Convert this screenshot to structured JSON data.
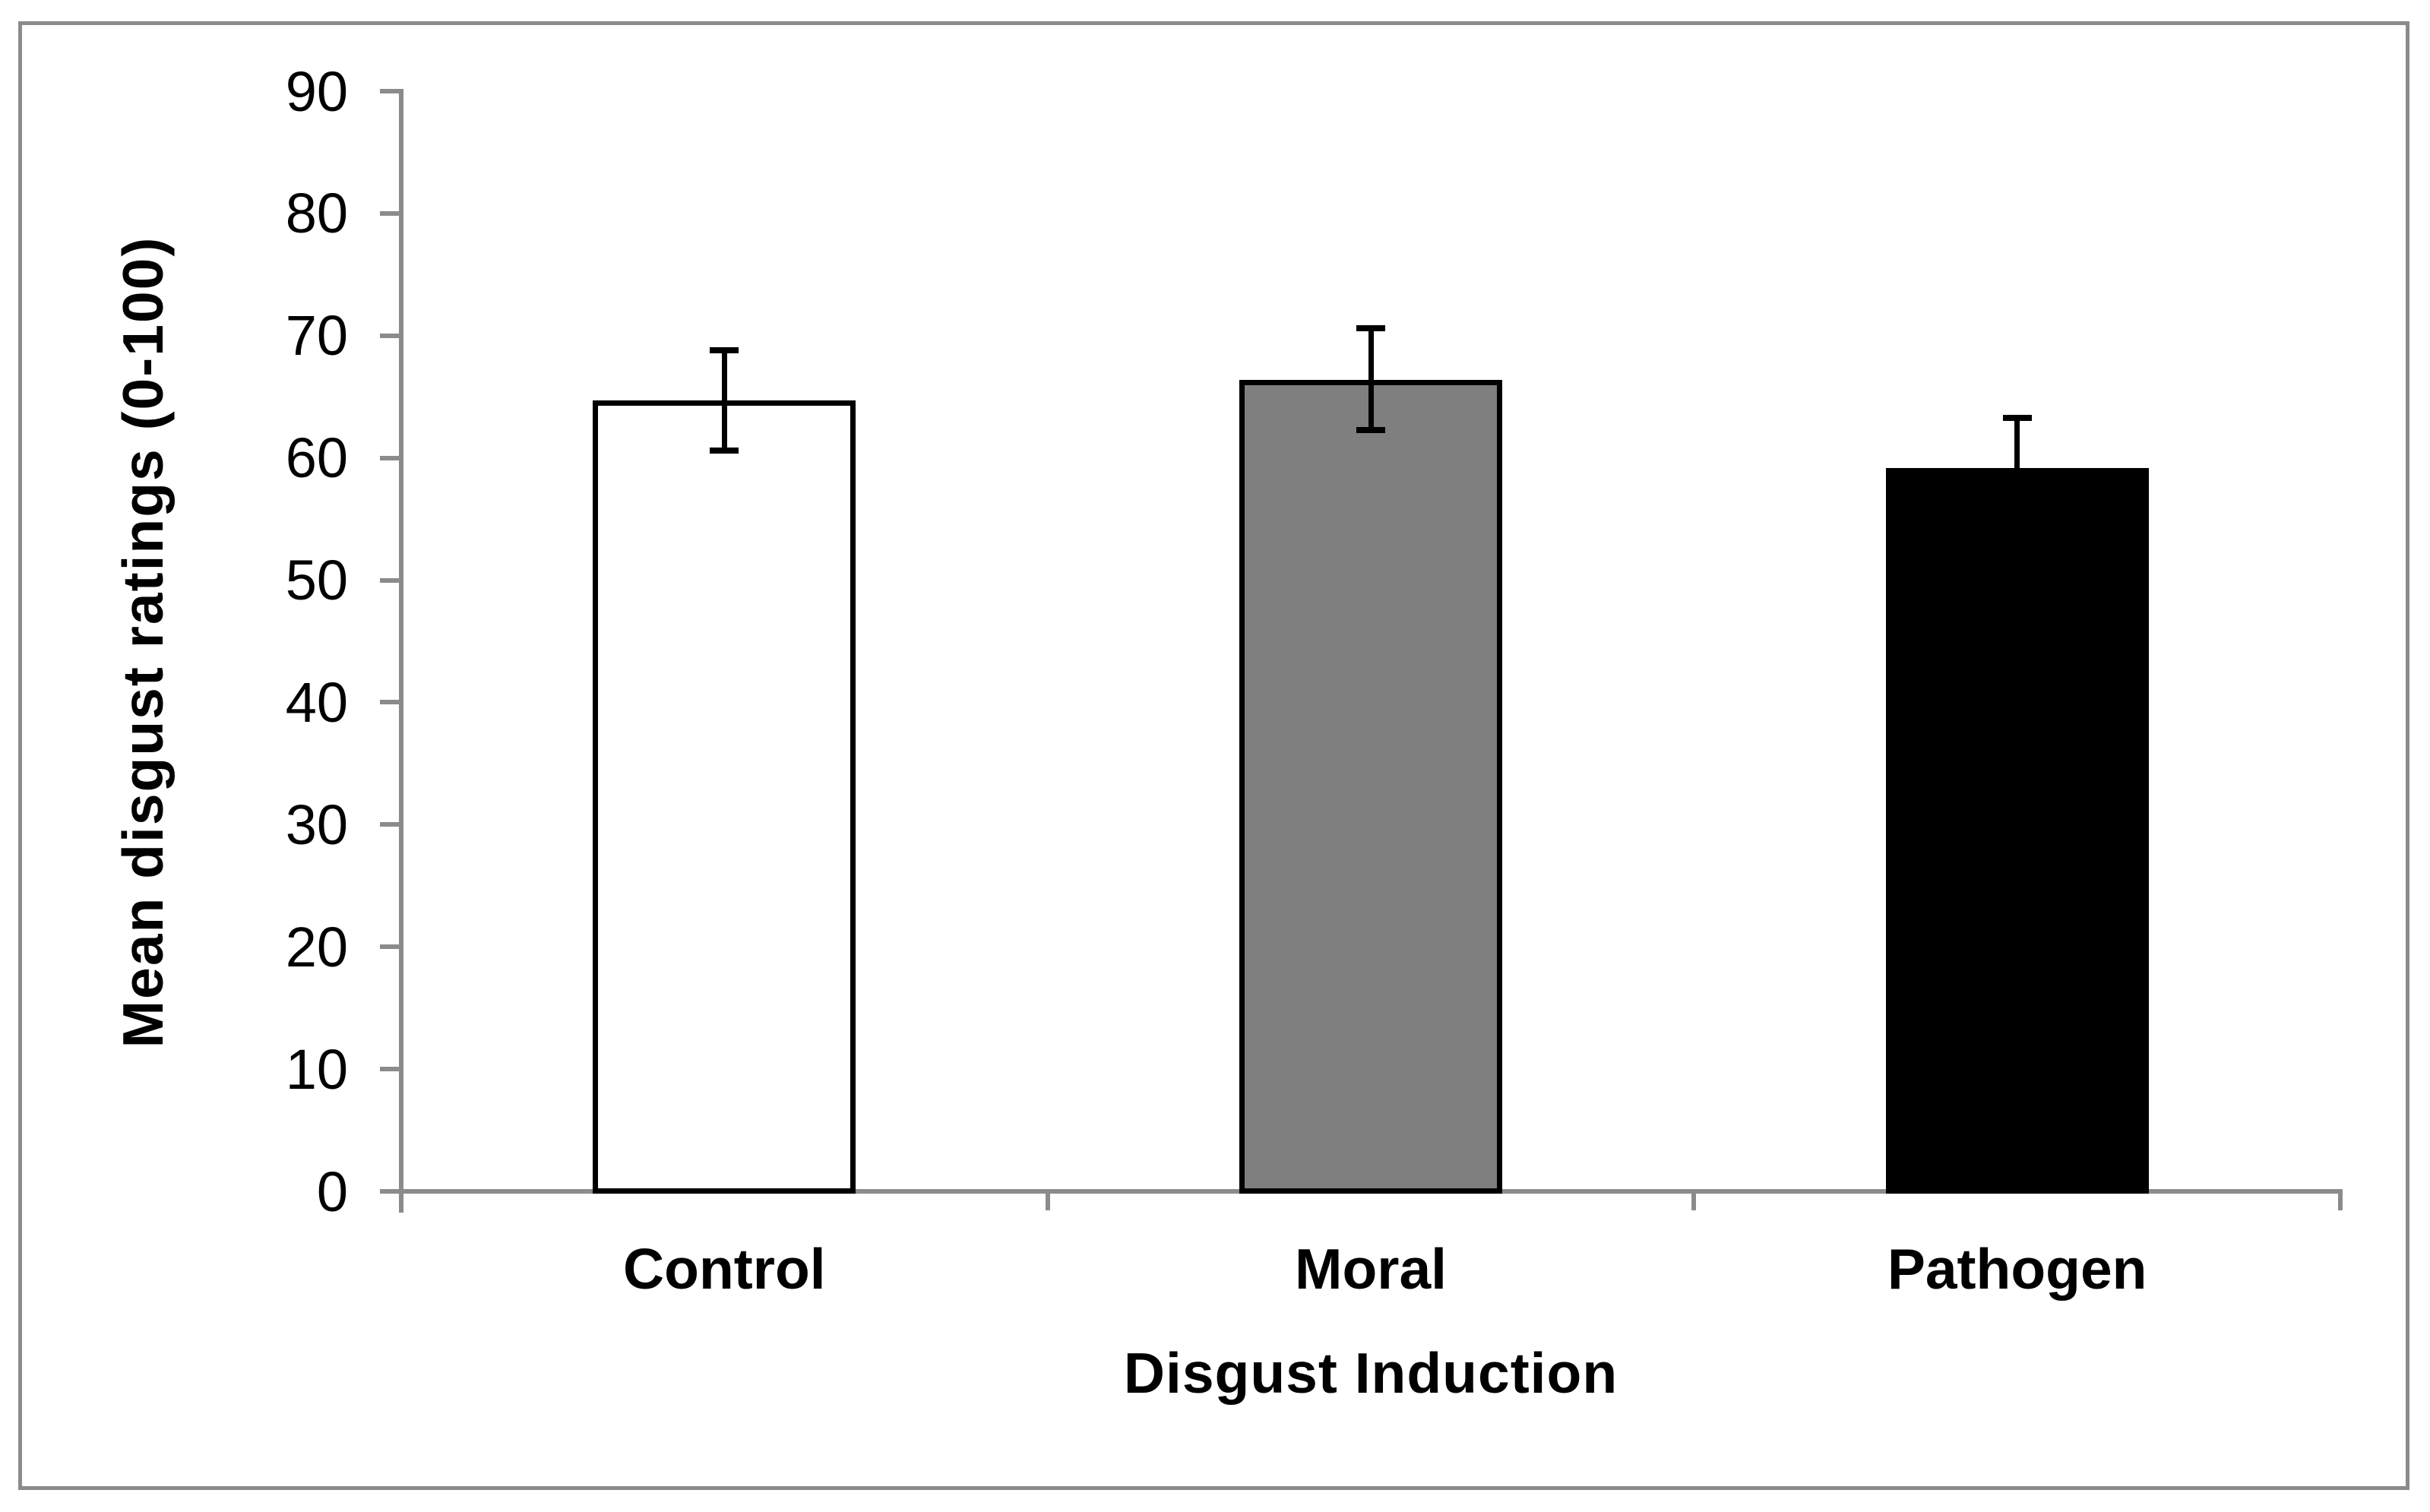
{
  "figure": {
    "background": "#FFFFFF",
    "border_color": "#8B8B8B"
  },
  "chart_data": {
    "type": "bar",
    "title": "",
    "xlabel": "Disgust Induction",
    "ylabel": "Mean disgust ratings (0-100)",
    "categories": [
      "Control",
      "Moral",
      "Pathogen"
    ],
    "series": [
      {
        "name": "Mean disgust rating",
        "values": [
          64.7,
          66.4,
          59.2
        ]
      }
    ],
    "error_upper": [
      68.8,
      70.6,
      63.3
    ],
    "error_lower": [
      60.6,
      62.3,
      55.1
    ],
    "bar_fills": [
      "#FFFFFF",
      "#7F7F7F",
      "#000000"
    ],
    "bar_stroke": "#000000",
    "error_color": "#000000",
    "axis_color": "#8B8B8B",
    "text_color": "#000000",
    "ylim": [
      0,
      90
    ],
    "yticks": [
      0,
      10,
      20,
      30,
      40,
      50,
      60,
      70,
      80,
      90
    ],
    "grid": false,
    "legend_position": "none"
  }
}
